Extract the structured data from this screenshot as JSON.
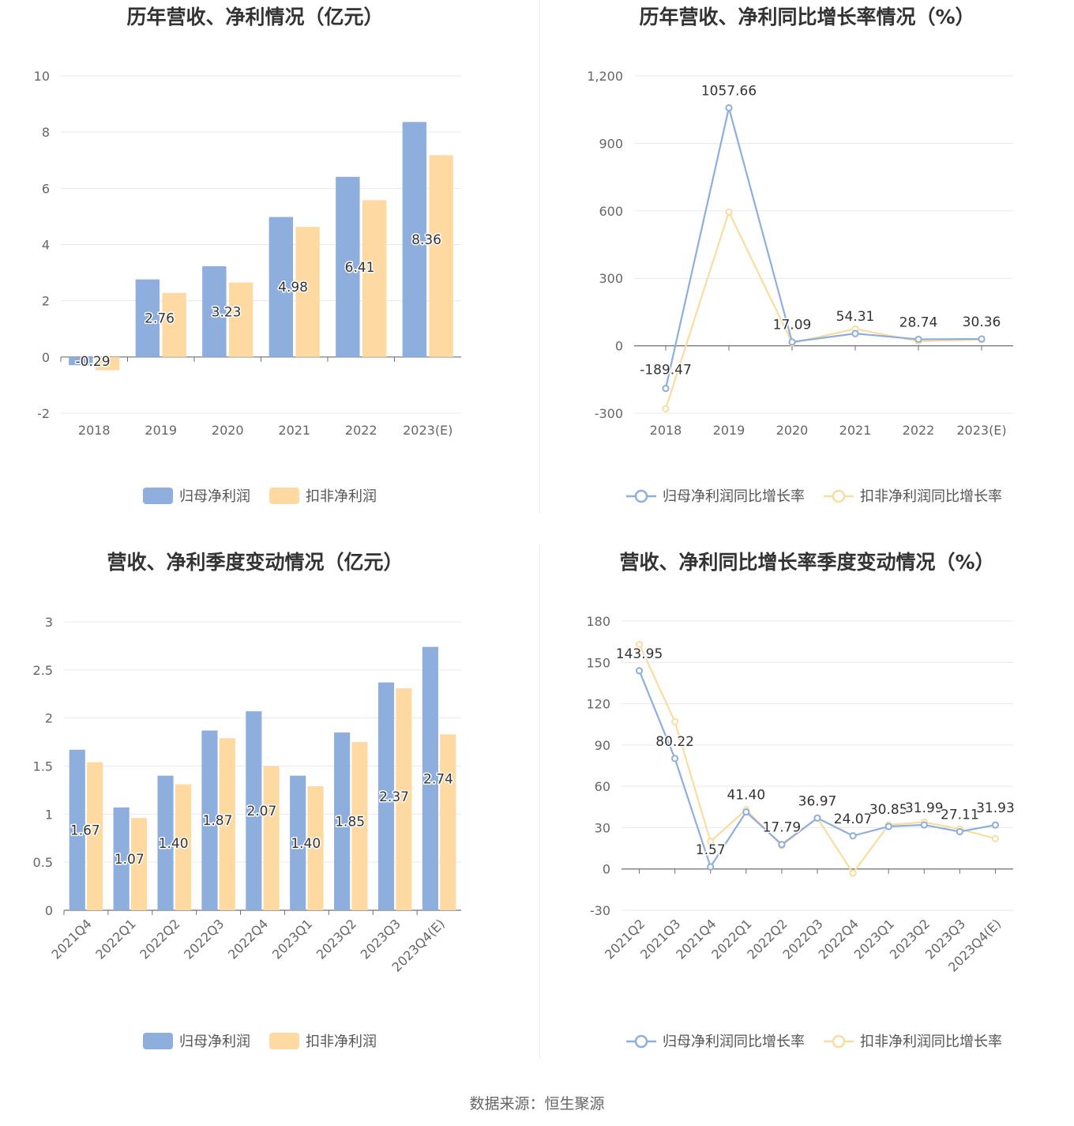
{
  "colors": {
    "blue": "#8eaedd",
    "orange": "#fedaa2",
    "line_blue": "#8eaedd",
    "line_orange": "#fbdca0",
    "grid": "#e6e9f2"
  },
  "footer": "数据来源：恒生聚源",
  "chart_data": [
    {
      "id": "c1",
      "type": "bar",
      "title": "历年营收、净利情况（亿元）",
      "categories": [
        "2018",
        "2019",
        "2020",
        "2021",
        "2022",
        "2023(E)"
      ],
      "series": [
        {
          "name": "归母净利润",
          "values": [
            -0.29,
            2.76,
            3.23,
            4.98,
            6.41,
            8.36
          ],
          "labels": [
            "-0.29",
            "2.76",
            "3.23",
            "4.98",
            "6.41",
            "8.36"
          ]
        },
        {
          "name": "扣非净利润",
          "values": [
            -0.47,
            2.28,
            2.65,
            4.63,
            5.58,
            7.18
          ]
        }
      ],
      "ylim": [
        -2,
        10
      ],
      "yticks": [
        "-2",
        "0",
        "2",
        "4",
        "6",
        "8",
        "10"
      ],
      "legend": "bottom"
    },
    {
      "id": "c2",
      "type": "line",
      "title": "历年营收、净利同比增长率情况（%）",
      "categories": [
        "2018",
        "2019",
        "2020",
        "2021",
        "2022",
        "2023(E)"
      ],
      "series": [
        {
          "name": "归母净利润同比增长率",
          "values": [
            -189.47,
            1057.66,
            17.09,
            54.31,
            28.74,
            30.36
          ],
          "labels": [
            "-189.47",
            "1057.66",
            "17.09",
            "54.31",
            "28.74",
            "30.36"
          ]
        },
        {
          "name": "扣非净利润同比增长率",
          "values": [
            -280,
            595,
            13,
            75,
            20,
            28
          ]
        }
      ],
      "ylim": [
        -300,
        1200
      ],
      "yticks": [
        "-300",
        "0",
        "300",
        "600",
        "900",
        "1,200"
      ],
      "legend": "bottom"
    },
    {
      "id": "c3",
      "type": "bar",
      "title": "营收、净利季度变动情况（亿元）",
      "categories": [
        "2021Q4",
        "2022Q1",
        "2022Q2",
        "2022Q3",
        "2022Q4",
        "2023Q1",
        "2023Q2",
        "2023Q3",
        "2023Q4(E)"
      ],
      "series": [
        {
          "name": "归母净利润",
          "values": [
            1.67,
            1.07,
            1.4,
            1.87,
            2.07,
            1.4,
            1.85,
            2.37,
            2.74
          ],
          "labels": [
            "1.67",
            "1.07",
            "1.40",
            "1.87",
            "2.07",
            "1.40",
            "1.85",
            "2.37",
            "2.74"
          ]
        },
        {
          "name": "扣非净利润",
          "values": [
            1.54,
            0.96,
            1.31,
            1.79,
            1.5,
            1.29,
            1.75,
            2.31,
            1.83
          ]
        }
      ],
      "ylim": [
        0,
        3
      ],
      "yticks": [
        "0",
        "0.5",
        "1",
        "1.5",
        "2",
        "2.5",
        "3"
      ],
      "legend": "bottom"
    },
    {
      "id": "c4",
      "type": "line",
      "title": "营收、净利同比增长率季度变动情况（%）",
      "categories": [
        "2021Q2",
        "2021Q3",
        "2021Q4",
        "2022Q1",
        "2022Q2",
        "2022Q3",
        "2022Q4",
        "2023Q1",
        "2023Q2",
        "2023Q3",
        "2023Q4(E)"
      ],
      "series": [
        {
          "name": "归母净利润同比增长率",
          "values": [
            143.95,
            80.22,
            1.57,
            41.4,
            17.79,
            36.97,
            24.07,
            30.85,
            31.99,
            27.11,
            31.93
          ],
          "labels": [
            "143.95",
            "80.22",
            "1.57",
            "41.40",
            "17.79",
            "36.97",
            "24.07",
            "30.85",
            "31.99",
            "27.11",
            "31.93"
          ]
        },
        {
          "name": "扣非净利润同比增长率",
          "values": [
            163,
            107,
            20,
            43,
            17,
            37,
            -3,
            32,
            34,
            29,
            22
          ]
        }
      ],
      "ylim": [
        -30,
        180
      ],
      "yticks": [
        "-30",
        "0",
        "30",
        "60",
        "90",
        "120",
        "150",
        "180"
      ],
      "legend": "bottom"
    }
  ]
}
